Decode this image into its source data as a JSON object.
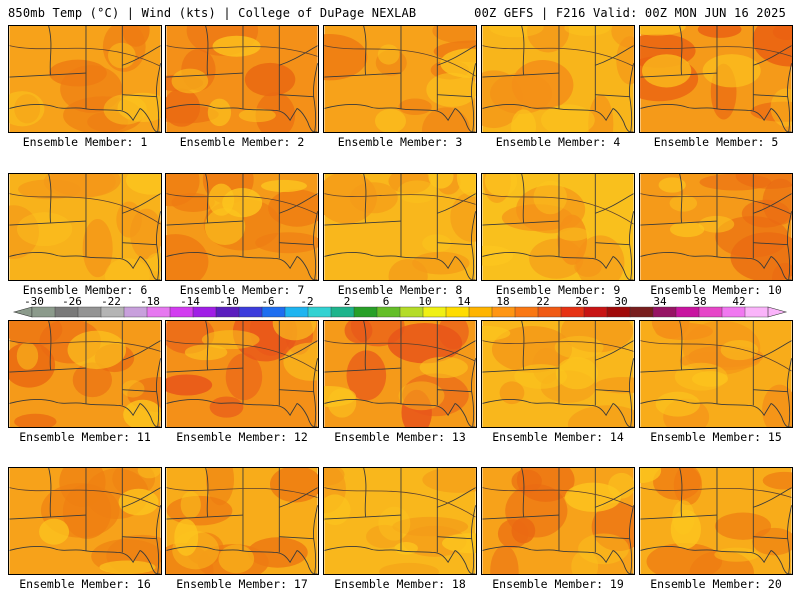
{
  "header": {
    "left": "850mb Temp (°C) | Wind (kts) | College of DuPage NEXLAB",
    "right": "00Z GEFS | F216 Valid: 00Z MON JUN 16 2025"
  },
  "colorbar": {
    "tick_labels": [
      "-30",
      "-26",
      "-22",
      "-18",
      "-14",
      "-10",
      "-6",
      "-2",
      "2",
      "6",
      "10",
      "14",
      "18",
      "22",
      "26",
      "30",
      "34",
      "38",
      "42"
    ],
    "colors": [
      "#8c9b8c",
      "#7a7a7a",
      "#949494",
      "#b4b4b4",
      "#c8a0dc",
      "#e678f0",
      "#d23cf0",
      "#a01ee6",
      "#5a1ebe",
      "#3c3cdc",
      "#1e6ef0",
      "#1eb4f0",
      "#32d2d2",
      "#1eb48c",
      "#28a028",
      "#64be28",
      "#b4dc28",
      "#f0f014",
      "#ffdc00",
      "#ffb400",
      "#ff9614",
      "#fa7814",
      "#f05a14",
      "#e63214",
      "#c81414",
      "#a00a0a",
      "#781e1e",
      "#961464",
      "#c814a0",
      "#e646c8",
      "#f078f0",
      "#fab4fa"
    ]
  },
  "panels": [
    {
      "label": "Ensemble Member: 1",
      "base": "#f7a21a",
      "hot": "#ee7b12"
    },
    {
      "label": "Ensemble Member: 2",
      "base": "#f49018",
      "hot": "#ea6a12"
    },
    {
      "label": "Ensemble Member: 3",
      "base": "#f7a21a",
      "hot": "#ee7b12"
    },
    {
      "label": "Ensemble Member: 4",
      "base": "#f8b51b",
      "hot": "#f49018"
    },
    {
      "label": "Ensemble Member: 5",
      "base": "#f59a19",
      "hot": "#ea6012"
    },
    {
      "label": "Ensemble Member: 6",
      "base": "#f8b21b",
      "hot": "#f49618"
    },
    {
      "label": "Ensemble Member: 7",
      "base": "#f59a19",
      "hot": "#ee7b12"
    },
    {
      "label": "Ensemble Member: 8",
      "base": "#f9b71c",
      "hot": "#f49a18"
    },
    {
      "label": "Ensemble Member: 9",
      "base": "#f9c01d",
      "hot": "#f49018"
    },
    {
      "label": "Ensemble Member: 10",
      "base": "#f59a19",
      "hot": "#ea6a12"
    },
    {
      "label": "Ensemble Member: 11",
      "base": "#f59a19",
      "hot": "#ea6a12"
    },
    {
      "label": "Ensemble Member: 12",
      "base": "#f49018",
      "hot": "#e8561a"
    },
    {
      "label": "Ensemble Member: 13",
      "base": "#f59a19",
      "hot": "#e8561a"
    },
    {
      "label": "Ensemble Member: 14",
      "base": "#f9b71c",
      "hot": "#f49a18"
    },
    {
      "label": "Ensemble Member: 15",
      "base": "#f8ac1a",
      "hot": "#f49018"
    },
    {
      "label": "Ensemble Member: 16",
      "base": "#f7a21a",
      "hot": "#ee8012"
    },
    {
      "label": "Ensemble Member: 17",
      "base": "#f8ac1a",
      "hot": "#ee7b12"
    },
    {
      "label": "Ensemble Member: 18",
      "base": "#f9b71c",
      "hot": "#f49a18"
    },
    {
      "label": "Ensemble Member: 19",
      "base": "#f7a21a",
      "hot": "#ea6a12"
    },
    {
      "label": "Ensemble Member: 20",
      "base": "#f8ac1a",
      "hot": "#ee7b12"
    }
  ]
}
